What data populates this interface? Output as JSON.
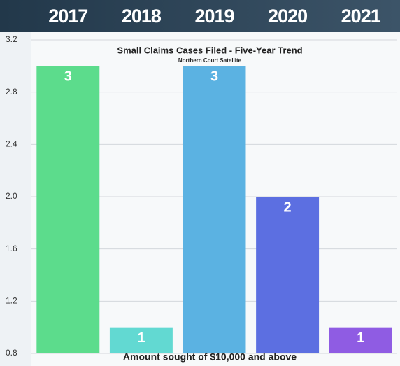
{
  "chart_data": {
    "type": "bar",
    "title": "Small Claims Cases Filed - Five-Year Trend",
    "subtitle": "Northern Court Satellite",
    "x_label": "Amount sought of $10,000 and above",
    "categories": [
      "2017",
      "2018",
      "2019",
      "2020",
      "2021"
    ],
    "values": [
      3,
      1,
      3,
      2,
      1
    ],
    "colors": [
      "#5cdc8c",
      "#62d9d2",
      "#5bb2e2",
      "#5c6fe1",
      "#8f5ce3"
    ],
    "ylim": [
      0.8,
      3.2
    ],
    "yticks": [
      0.8,
      1.2,
      1.6,
      {
        "value": 2,
        "label": "2.0"
      },
      2.4,
      2.8,
      3.2
    ],
    "grid": true
  }
}
